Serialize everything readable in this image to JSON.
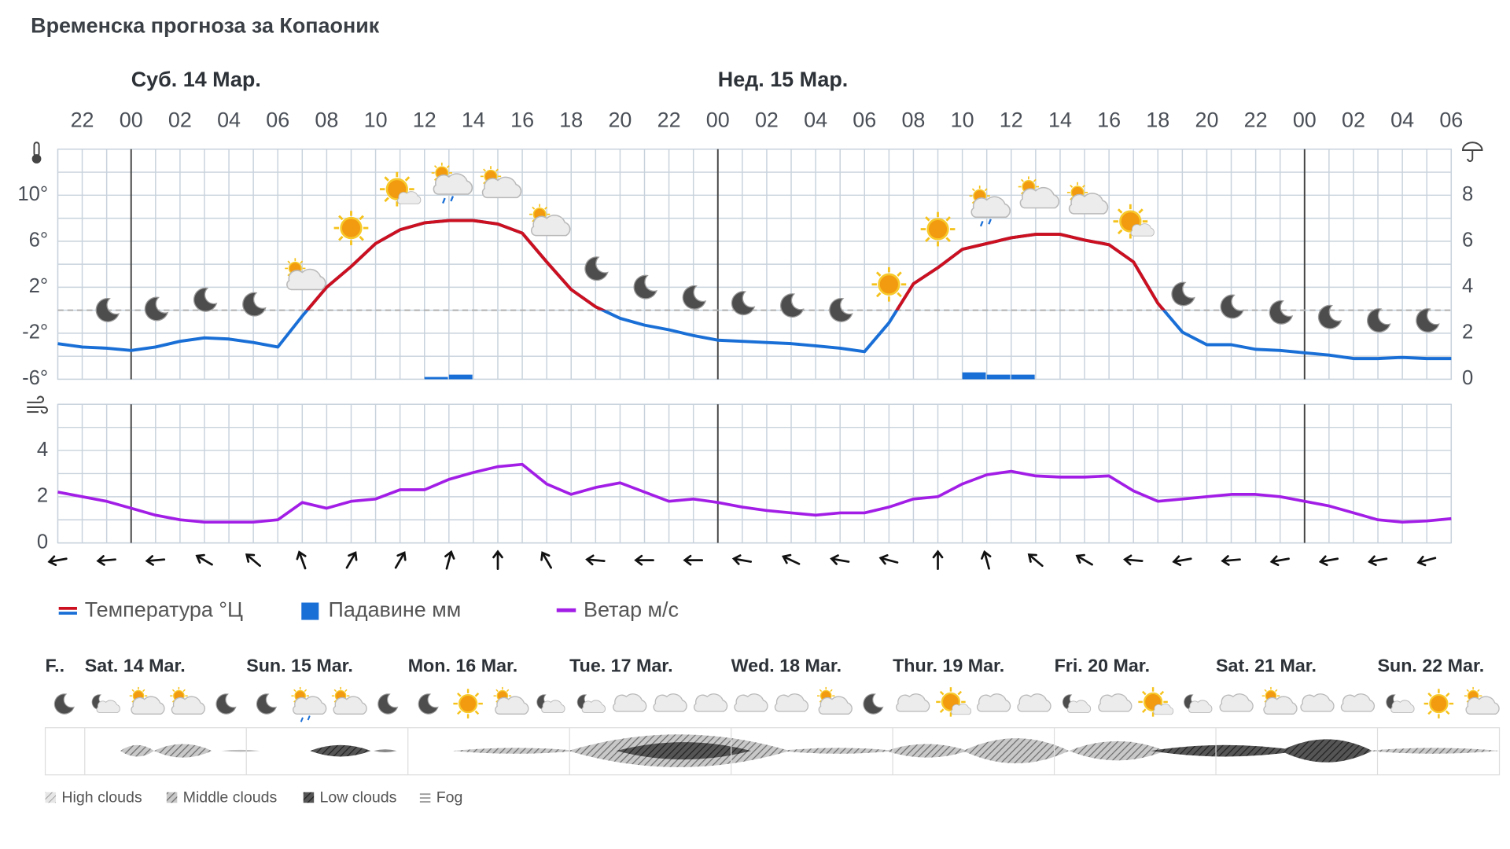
{
  "title": "Временска прогноза за Копаоник",
  "chart_data": [
    {
      "type": "line",
      "day_labels": [
        "Суб. 14 Мар.",
        "Нед. 15 Мар."
      ],
      "categories": [
        null,
        "22",
        null,
        "00",
        null,
        "02",
        null,
        "04",
        null,
        "06",
        null,
        "08",
        null,
        "10",
        null,
        "12",
        null,
        "14",
        null,
        "16",
        null,
        "18",
        null,
        "20",
        null,
        "22",
        null,
        "00",
        null,
        "02",
        null,
        "04",
        null,
        "06",
        null,
        "08",
        null,
        "10",
        null,
        "12",
        null,
        "14",
        null,
        "16",
        null,
        "18",
        null,
        "20",
        null,
        "22",
        null,
        "00",
        null,
        "02",
        null,
        "04",
        null,
        "06"
      ],
      "series": [
        {
          "name": "Температура °Ц",
          "type": "line",
          "color": "#cc1020",
          "below_threshold_color": "#1a6fd6",
          "threshold": 0,
          "values": [
            -2.9,
            -3.2,
            -3.3,
            -3.5,
            -3.2,
            -2.7,
            -2.4,
            -2.5,
            -2.8,
            -3.2,
            -0.5,
            2,
            3.8,
            5.8,
            7,
            7.6,
            7.8,
            7.8,
            7.5,
            6.7,
            4.2,
            1.8,
            0.3,
            -0.7,
            -1.3,
            -1.7,
            -2.2,
            -2.6,
            -2.7,
            -2.8,
            -2.9,
            -3.1,
            -3.3,
            -3.6,
            -1.1,
            2.3,
            3.7,
            5.3,
            5.8,
            6.3,
            6.6,
            6.6,
            6.1,
            5.7,
            4.2,
            0.6,
            -1.9,
            -3,
            -3,
            -3.4,
            -3.5,
            -3.7,
            -3.9,
            -4.2,
            -4.2,
            -4.1,
            -4.2,
            -4.2
          ]
        },
        {
          "name": "Падавине мм",
          "type": "bar",
          "axis": "y2",
          "color": "#1a6fd6",
          "values": [
            0,
            0,
            0,
            0,
            0,
            0,
            0,
            0,
            0,
            0,
            0,
            0,
            0,
            0,
            0,
            0.1,
            0.2,
            0,
            0,
            0,
            0,
            0,
            0,
            0,
            0,
            0,
            0,
            0,
            0,
            0,
            0,
            0,
            0,
            0,
            0,
            0,
            0,
            0.3,
            0.2,
            0.2,
            0,
            0,
            0,
            0,
            0,
            0,
            0,
            0,
            0,
            0,
            0,
            0,
            0,
            0,
            0,
            0,
            0,
            0
          ]
        }
      ],
      "ylim": [
        -6,
        14
      ],
      "yticks": [
        {
          "value": -6,
          "label": "-6°"
        },
        {
          "value": -2,
          "label": "-2°"
        },
        {
          "value": 2,
          "label": "2°"
        },
        {
          "value": 6,
          "label": "6°"
        },
        {
          "value": 10,
          "label": "10°"
        }
      ],
      "ygrid": [
        -6,
        -4,
        -2,
        0,
        2,
        4,
        6,
        8,
        10,
        12,
        14
      ],
      "y2lim": [
        0,
        10
      ],
      "y2ticks": [
        0,
        2,
        4,
        6,
        8
      ],
      "grid": true
    },
    {
      "type": "line",
      "series": [
        {
          "name": "Ветар м/с",
          "color": "#a21ee6",
          "values": [
            2.2,
            2,
            1.8,
            1.5,
            1.2,
            1,
            0.9,
            0.9,
            0.9,
            1,
            1.75,
            1.5,
            1.8,
            1.9,
            2.3,
            2.3,
            2.75,
            3.05,
            3.3,
            3.4,
            2.55,
            2.1,
            2.4,
            2.6,
            2.2,
            1.8,
            1.9,
            1.75,
            1.55,
            1.4,
            1.3,
            1.2,
            1.3,
            1.3,
            1.55,
            1.9,
            2,
            2.55,
            2.95,
            3.1,
            2.9,
            2.85,
            2.85,
            2.9,
            2.25,
            1.8,
            1.9,
            2,
            2.1,
            2.1,
            2,
            1.8,
            1.6,
            1.3,
            1,
            0.9,
            0.95,
            1.05
          ],
          "directions": [
            260,
            265,
            265,
            300,
            310,
            340,
            30,
            30,
            15,
            0,
            330,
            275,
            270,
            270,
            280,
            295,
            280,
            285,
            0,
            345,
            310,
            300,
            275,
            260,
            265,
            260,
            260,
            260,
            255
          ]
        }
      ],
      "ylim": [
        0,
        6
      ],
      "yticks": [
        0,
        2,
        4
      ],
      "ygrid": [
        0,
        1,
        2,
        3,
        4,
        5,
        6
      ],
      "grid": true
    }
  ],
  "forecast": {
    "days": [
      "F..",
      "Sat. 14 Mar.",
      "Sun. 15 Mar.",
      "Mon. 16 Mar.",
      "Tue. 17 Mar.",
      "Wed. 18 Mar.",
      "Thur. 19 Mar.",
      "Fri. 20 Mar.",
      "Sat. 21 Mar.",
      "Sun. 22 Mar."
    ],
    "cloud_legend": [
      "High clouds",
      "Middle clouds",
      "Low clouds",
      "Fog"
    ]
  }
}
